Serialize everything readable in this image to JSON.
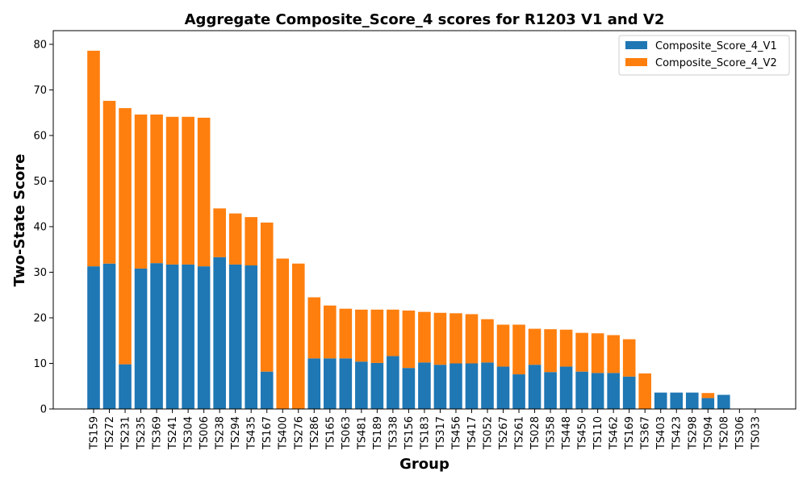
{
  "chart_data": {
    "type": "bar",
    "stacked": true,
    "title": "Aggregate Composite_Score_4 scores for R1203 V1 and V2",
    "xlabel": "Group",
    "ylabel": "Two-State Score",
    "ylim": [
      0,
      83
    ],
    "yticks": [
      0,
      10,
      20,
      30,
      40,
      50,
      60,
      70,
      80
    ],
    "legend_position": "top-right",
    "grid": false,
    "categories": [
      "TS159",
      "TS272",
      "TS231",
      "TS235",
      "TS369",
      "TS241",
      "TS304",
      "TS006",
      "TS238",
      "TS294",
      "TS435",
      "TS167",
      "TS400",
      "TS276",
      "TS286",
      "TS165",
      "TS063",
      "TS481",
      "TS189",
      "TS338",
      "TS156",
      "TS183",
      "TS317",
      "TS456",
      "TS417",
      "TS052",
      "TS267",
      "TS261",
      "TS028",
      "TS358",
      "TS448",
      "TS450",
      "TS110",
      "TS462",
      "TS169",
      "TS367",
      "TS403",
      "TS423",
      "TS298",
      "TS094",
      "TS208",
      "TS306",
      "TS033"
    ],
    "series": [
      {
        "name": "Composite_Score_4_V1",
        "color": "#1f77b4",
        "values": [
          31.3,
          31.9,
          9.8,
          30.8,
          32.0,
          31.7,
          31.7,
          31.3,
          33.3,
          31.7,
          31.5,
          8.2,
          0,
          0,
          11.1,
          11.1,
          11.1,
          10.4,
          10.1,
          11.6,
          9.0,
          10.2,
          9.7,
          10.0,
          10.0,
          10.2,
          9.3,
          7.6,
          9.7,
          8.1,
          9.3,
          8.2,
          7.9,
          7.9,
          7.1,
          0,
          3.6,
          3.6,
          3.6,
          2.4,
          3.1,
          0,
          0
        ]
      },
      {
        "name": "Composite_Score_4_V2",
        "color": "#ff7f0e",
        "values": [
          47.3,
          35.7,
          56.2,
          33.8,
          32.6,
          32.4,
          32.4,
          32.6,
          10.7,
          11.2,
          10.6,
          32.7,
          33.0,
          31.9,
          13.4,
          11.6,
          10.9,
          11.4,
          11.7,
          10.2,
          12.6,
          11.1,
          11.4,
          11.0,
          10.8,
          9.5,
          9.2,
          10.9,
          7.9,
          9.4,
          8.1,
          8.5,
          8.7,
          8.3,
          8.2,
          7.8,
          0,
          0,
          0,
          1.1,
          0,
          0,
          0
        ]
      }
    ]
  }
}
